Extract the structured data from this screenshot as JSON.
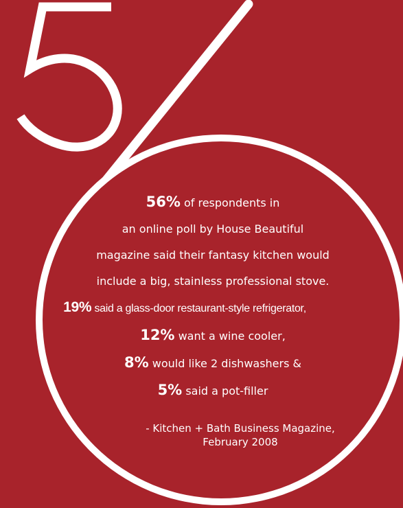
{
  "graphic": {
    "numerator": "5",
    "denominator": "6",
    "colors": {
      "background": "#a8232b",
      "foreground": "#ffffff"
    }
  },
  "stats": {
    "line1_pct": "56%",
    "line1_text": "of respondents in",
    "line2": "an online poll by House Beautiful",
    "line3": "magazine said their fantasy kitchen would",
    "line4": "include a big, stainless professional stove.",
    "line5_pct": "19%",
    "line5_text": "said a glass-door restaurant-style refrigerator,",
    "line6_pct": "12%",
    "line6_text": "want a wine cooler,",
    "line7_pct": "8%",
    "line7_text": "would like 2 dishwashers &",
    "line8_pct": "5%",
    "line8_text": "said a pot-filler"
  },
  "source": {
    "line1": "- Kitchen + Bath Business Magazine,",
    "line2": "February 2008"
  }
}
